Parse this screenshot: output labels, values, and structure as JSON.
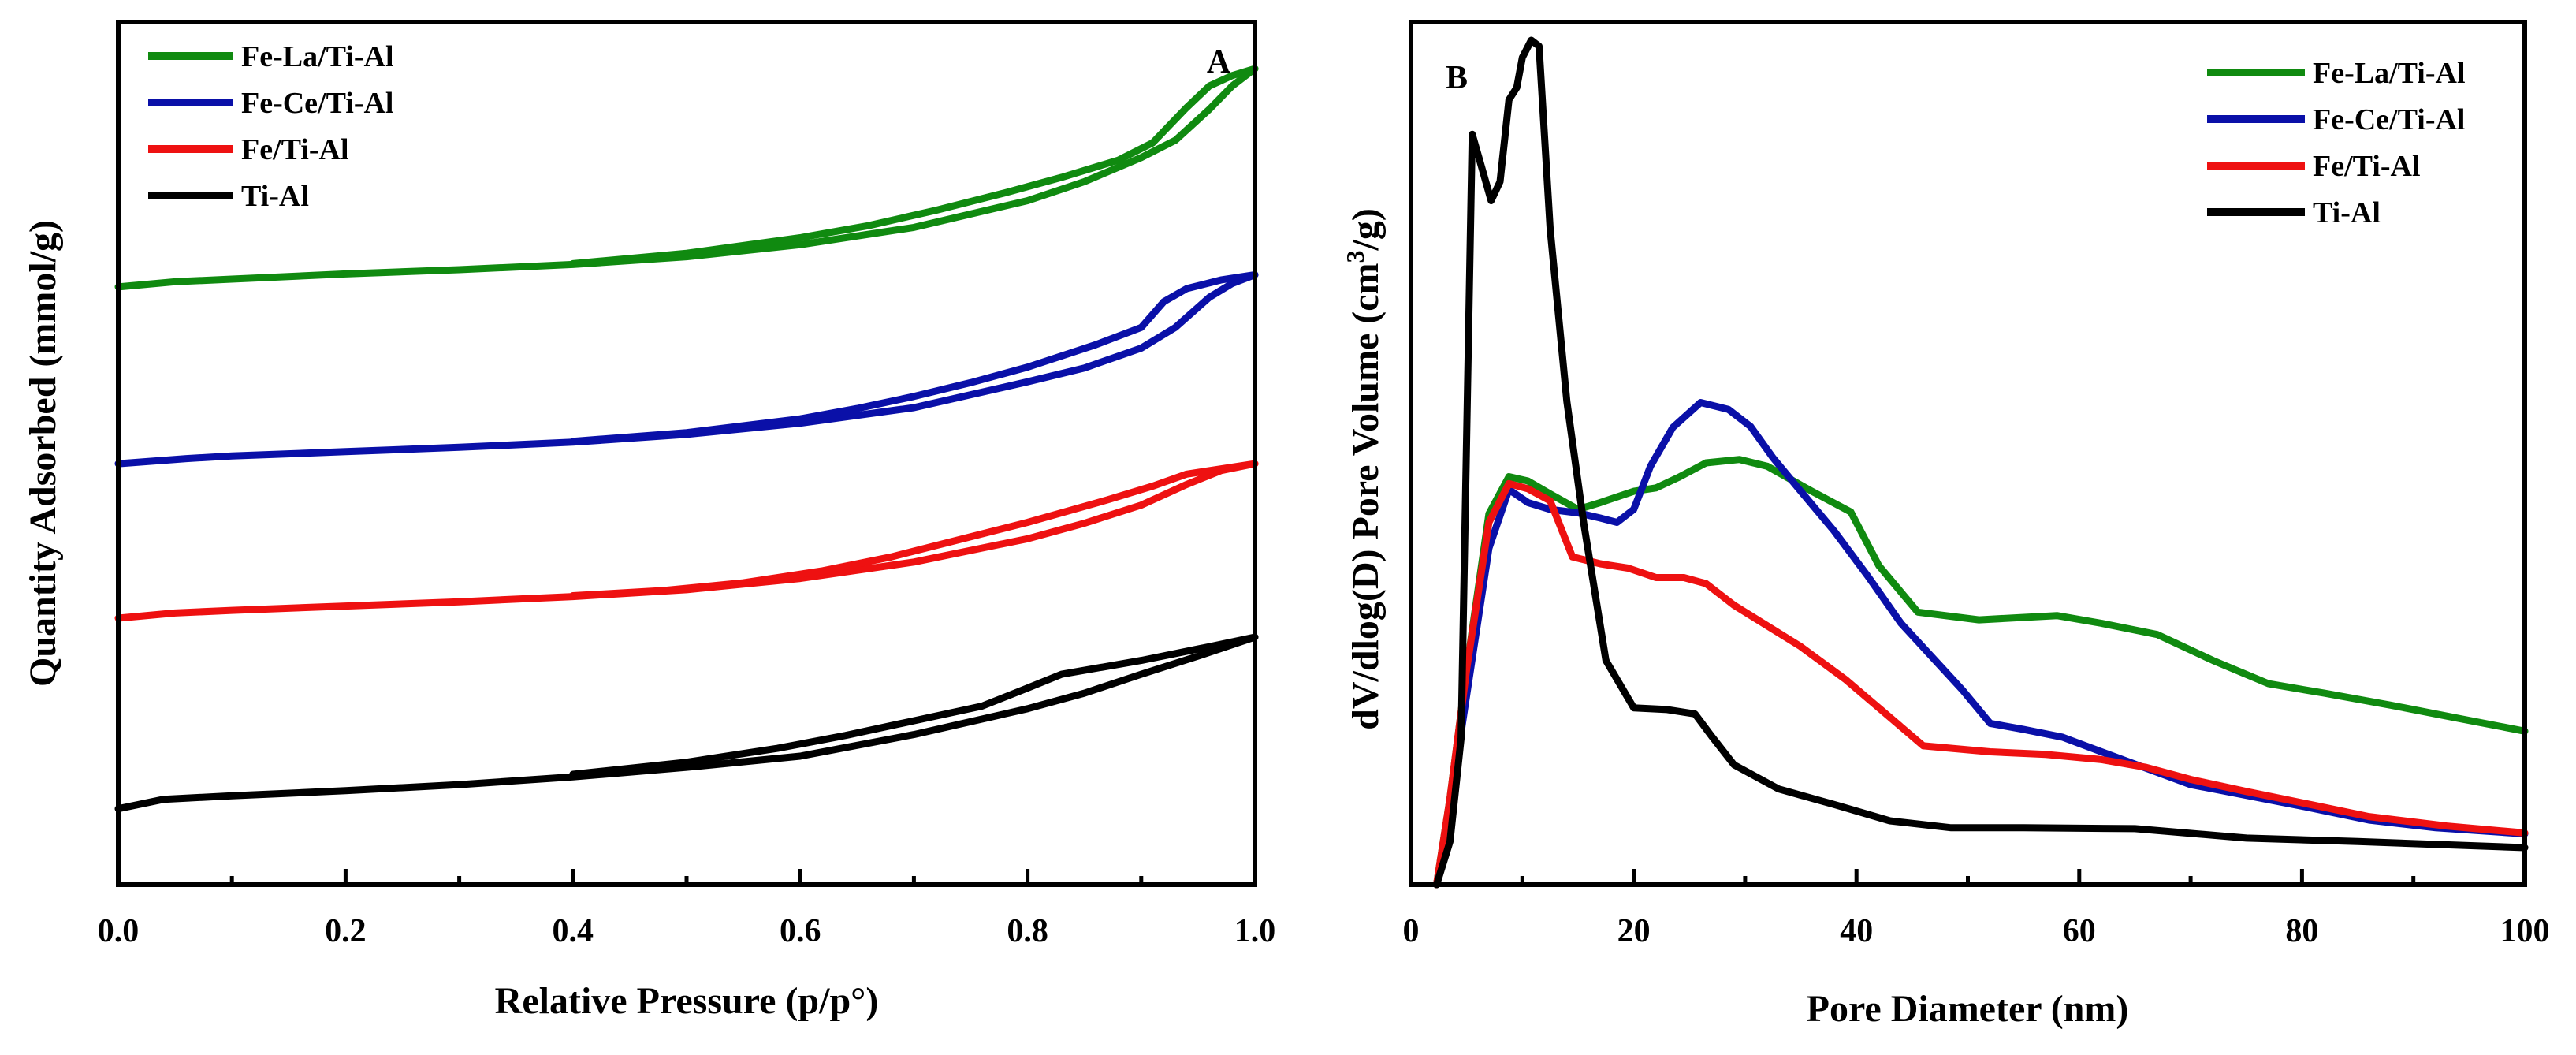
{
  "chart_data": [
    {
      "type": "line",
      "panel_label": "A",
      "title": "",
      "xlabel": "Relative Pressure (p/p°)",
      "ylabel": "Quantity Adsorbed (mmol/g)",
      "xlim": [
        0,
        1
      ],
      "ylim": [
        0,
        100
      ],
      "y_ticks_shown": false,
      "x_ticks": [
        {
          "value": 0.0,
          "label": "0.0"
        },
        {
          "value": 0.2,
          "label": "0.2"
        },
        {
          "value": 0.4,
          "label": "0.4"
        },
        {
          "value": 0.6,
          "label": "0.6"
        },
        {
          "value": 0.8,
          "label": "0.8"
        },
        {
          "value": 1.0,
          "label": "1.0"
        }
      ],
      "legend_position": "top-left",
      "series": [
        {
          "name": "Fe-La/Ti-Al",
          "color": "#108a10",
          "adsorption": [
            [
              0,
              69.3
            ],
            [
              0.05,
              69.9
            ],
            [
              0.1,
              70.2
            ],
            [
              0.2,
              70.8
            ],
            [
              0.3,
              71.3
            ],
            [
              0.4,
              71.9
            ],
            [
              0.5,
              72.8
            ],
            [
              0.6,
              74.2
            ],
            [
              0.7,
              76.2
            ],
            [
              0.8,
              79.3
            ],
            [
              0.85,
              81.5
            ],
            [
              0.9,
              84.3
            ],
            [
              0.93,
              86.3
            ],
            [
              0.96,
              89.9
            ],
            [
              0.98,
              92.6
            ],
            [
              1.0,
              94.6
            ]
          ],
          "desorption": [
            [
              1.0,
              94.6
            ],
            [
              0.98,
              93.8
            ],
            [
              0.96,
              92.6
            ],
            [
              0.94,
              90.1
            ],
            [
              0.91,
              86.0
            ],
            [
              0.88,
              84.0
            ],
            [
              0.83,
              82.0
            ],
            [
              0.78,
              80.2
            ],
            [
              0.72,
              78.2
            ],
            [
              0.66,
              76.4
            ],
            [
              0.6,
              75.0
            ],
            [
              0.5,
              73.2
            ],
            [
              0.4,
              72.0
            ]
          ]
        },
        {
          "name": "Fe-Ce/Ti-Al",
          "color": "#0a10a8",
          "adsorption": [
            [
              0,
              48.8
            ],
            [
              0.06,
              49.4
            ],
            [
              0.1,
              49.7
            ],
            [
              0.2,
              50.2
            ],
            [
              0.3,
              50.7
            ],
            [
              0.4,
              51.3
            ],
            [
              0.5,
              52.2
            ],
            [
              0.6,
              53.5
            ],
            [
              0.7,
              55.3
            ],
            [
              0.8,
              58.3
            ],
            [
              0.85,
              59.9
            ],
            [
              0.9,
              62.2
            ],
            [
              0.93,
              64.6
            ],
            [
              0.96,
              68.1
            ],
            [
              0.98,
              69.7
            ],
            [
              1.0,
              70.7
            ]
          ],
          "desorption": [
            [
              1.0,
              70.7
            ],
            [
              0.97,
              70.1
            ],
            [
              0.94,
              69.1
            ],
            [
              0.92,
              67.6
            ],
            [
              0.9,
              64.6
            ],
            [
              0.86,
              62.6
            ],
            [
              0.8,
              60.0
            ],
            [
              0.75,
              58.2
            ],
            [
              0.7,
              56.6
            ],
            [
              0.65,
              55.2
            ],
            [
              0.6,
              54.0
            ],
            [
              0.5,
              52.4
            ],
            [
              0.4,
              51.4
            ]
          ]
        },
        {
          "name": "Fe/Ti-Al",
          "color": "#ee1111",
          "adsorption": [
            [
              0,
              30.9
            ],
            [
              0.05,
              31.5
            ],
            [
              0.1,
              31.8
            ],
            [
              0.2,
              32.3
            ],
            [
              0.3,
              32.8
            ],
            [
              0.4,
              33.4
            ],
            [
              0.5,
              34.2
            ],
            [
              0.6,
              35.5
            ],
            [
              0.7,
              37.4
            ],
            [
              0.8,
              40.1
            ],
            [
              0.85,
              41.9
            ],
            [
              0.9,
              44.0
            ],
            [
              0.94,
              46.4
            ],
            [
              0.97,
              48.0
            ],
            [
              1.0,
              48.8
            ]
          ],
          "desorption": [
            [
              1.0,
              48.8
            ],
            [
              0.97,
              48.2
            ],
            [
              0.94,
              47.6
            ],
            [
              0.91,
              46.2
            ],
            [
              0.87,
              44.6
            ],
            [
              0.8,
              42.0
            ],
            [
              0.74,
              40.0
            ],
            [
              0.68,
              38.0
            ],
            [
              0.62,
              36.4
            ],
            [
              0.55,
              35.0
            ],
            [
              0.48,
              34.1
            ],
            [
              0.4,
              33.5
            ]
          ]
        },
        {
          "name": "Ti-Al",
          "color": "#000000",
          "adsorption": [
            [
              0,
              8.8
            ],
            [
              0.04,
              9.9
            ],
            [
              0.1,
              10.3
            ],
            [
              0.2,
              10.9
            ],
            [
              0.3,
              11.6
            ],
            [
              0.4,
              12.5
            ],
            [
              0.5,
              13.6
            ],
            [
              0.6,
              14.9
            ],
            [
              0.7,
              17.4
            ],
            [
              0.8,
              20.4
            ],
            [
              0.85,
              22.2
            ],
            [
              0.9,
              24.4
            ],
            [
              0.95,
              26.5
            ],
            [
              1.0,
              28.7
            ]
          ],
          "desorption": [
            [
              1.0,
              28.7
            ],
            [
              0.96,
              27.6
            ],
            [
              0.9,
              26.0
            ],
            [
              0.83,
              24.4
            ],
            [
              0.8,
              22.8
            ],
            [
              0.76,
              20.7
            ],
            [
              0.7,
              19.0
            ],
            [
              0.64,
              17.3
            ],
            [
              0.58,
              15.8
            ],
            [
              0.5,
              14.2
            ],
            [
              0.4,
              12.8
            ]
          ]
        }
      ]
    },
    {
      "type": "line",
      "panel_label": "B",
      "title": "",
      "xlabel": "Pore Diameter (nm)",
      "ylabel": "dV/dlog(D) Pore Volume (cm³/g)",
      "ylabel_parts": {
        "pre": "dV/dlog(D) Pore Volume (cm",
        "sup": "3",
        "post": "/g)"
      },
      "xlim": [
        0,
        100
      ],
      "ylim": [
        0,
        100
      ],
      "y_ticks_shown": false,
      "x_ticks": [
        {
          "value": 0,
          "label": "0"
        },
        {
          "value": 20,
          "label": "20"
        },
        {
          "value": 40,
          "label": "40"
        },
        {
          "value": 60,
          "label": "60"
        },
        {
          "value": 80,
          "label": "80"
        },
        {
          "value": 100,
          "label": "100"
        }
      ],
      "legend_position": "top-right",
      "series": [
        {
          "name": "Fe-La/Ti-Al",
          "color": "#108a10",
          "points": [
            [
              2.3,
              0
            ],
            [
              3.5,
              10
            ],
            [
              5,
              25
            ],
            [
              7,
              43
            ],
            [
              8.8,
              47.3
            ],
            [
              10.5,
              46.8
            ],
            [
              12.5,
              45.3
            ],
            [
              15,
              43.5
            ],
            [
              17,
              44.3
            ],
            [
              20,
              45.6
            ],
            [
              22,
              46.0
            ],
            [
              24,
              47.2
            ],
            [
              26.5,
              48.9
            ],
            [
              29.5,
              49.3
            ],
            [
              32,
              48.5
            ],
            [
              36,
              45.6
            ],
            [
              39.5,
              43.2
            ],
            [
              42,
              37.0
            ],
            [
              45.5,
              31.6
            ],
            [
              51,
              30.7
            ],
            [
              58,
              31.2
            ],
            [
              62,
              30.3
            ],
            [
              67,
              29.0
            ],
            [
              72,
              26.0
            ],
            [
              77,
              23.3
            ],
            [
              82,
              22.2
            ],
            [
              88,
              20.8
            ],
            [
              94,
              19.3
            ],
            [
              100,
              17.8
            ]
          ]
        },
        {
          "name": "Fe-Ce/Ti-Al",
          "color": "#0a10a8",
          "points": [
            [
              2.3,
              0
            ],
            [
              3.5,
              9
            ],
            [
              5,
              22
            ],
            [
              7,
              39
            ],
            [
              8.8,
              45.8
            ],
            [
              10.5,
              44.3
            ],
            [
              12.5,
              43.5
            ],
            [
              15,
              43.1
            ],
            [
              17,
              42.5
            ],
            [
              18.5,
              42.0
            ],
            [
              20,
              43.5
            ],
            [
              21.5,
              48.5
            ],
            [
              23.5,
              53.0
            ],
            [
              26,
              55.9
            ],
            [
              28.5,
              55.1
            ],
            [
              30.5,
              53.1
            ],
            [
              32.5,
              49.5
            ],
            [
              35,
              45.6
            ],
            [
              38,
              41.0
            ],
            [
              41,
              35.8
            ],
            [
              44,
              30.3
            ],
            [
              46.5,
              26.8
            ],
            [
              49.5,
              22.6
            ],
            [
              52,
              18.7
            ],
            [
              55,
              18.0
            ],
            [
              58.5,
              17.1
            ],
            [
              62,
              15.4
            ],
            [
              66,
              13.5
            ],
            [
              70,
              11.6
            ],
            [
              74,
              10.6
            ],
            [
              80,
              9.1
            ],
            [
              86,
              7.5
            ],
            [
              92,
              6.6
            ],
            [
              100,
              5.9
            ]
          ]
        },
        {
          "name": "Fe/Ti-Al",
          "color": "#ee1111",
          "points": [
            [
              2.3,
              0
            ],
            [
              3.5,
              10
            ],
            [
              5,
              25
            ],
            [
              7,
              42
            ],
            [
              8.8,
              46.5
            ],
            [
              10.5,
              45.9
            ],
            [
              12.5,
              44.5
            ],
            [
              14.5,
              38.0
            ],
            [
              17,
              37.2
            ],
            [
              19.5,
              36.7
            ],
            [
              22,
              35.6
            ],
            [
              24.5,
              35.6
            ],
            [
              26.5,
              34.9
            ],
            [
              29,
              32.4
            ],
            [
              31,
              30.8
            ],
            [
              35,
              27.6
            ],
            [
              39,
              23.8
            ],
            [
              42,
              20.5
            ],
            [
              46,
              16.1
            ],
            [
              52,
              15.4
            ],
            [
              57,
              15.1
            ],
            [
              62,
              14.5
            ],
            [
              66,
              13.6
            ],
            [
              70,
              12.2
            ],
            [
              75,
              10.8
            ],
            [
              80,
              9.5
            ],
            [
              86,
              7.9
            ],
            [
              93,
              6.8
            ],
            [
              100,
              6.0
            ]
          ]
        },
        {
          "name": "Ti-Al",
          "color": "#000000",
          "points": [
            [
              2.3,
              0
            ],
            [
              3.5,
              5
            ],
            [
              4.5,
              17
            ],
            [
              5.5,
              87.0
            ],
            [
              6.5,
              82.5
            ],
            [
              7.2,
              79.3
            ],
            [
              8,
              81.5
            ],
            [
              8.8,
              91.0
            ],
            [
              9.5,
              92.4
            ],
            [
              10,
              95.9
            ],
            [
              10.8,
              97.9
            ],
            [
              11.5,
              97.2
            ],
            [
              12.5,
              76.0
            ],
            [
              14,
              56.0
            ],
            [
              15.5,
              42.0
            ],
            [
              17.5,
              26.0
            ],
            [
              20,
              20.5
            ],
            [
              23,
              20.3
            ],
            [
              25.5,
              19.8
            ],
            [
              27,
              17.2
            ],
            [
              29,
              13.9
            ],
            [
              33,
              11.1
            ],
            [
              38,
              9.3
            ],
            [
              43,
              7.4
            ],
            [
              48.5,
              6.6
            ],
            [
              55,
              6.6
            ],
            [
              65,
              6.5
            ],
            [
              75,
              5.4
            ],
            [
              85,
              5.0
            ],
            [
              100,
              4.3
            ]
          ]
        }
      ]
    }
  ]
}
